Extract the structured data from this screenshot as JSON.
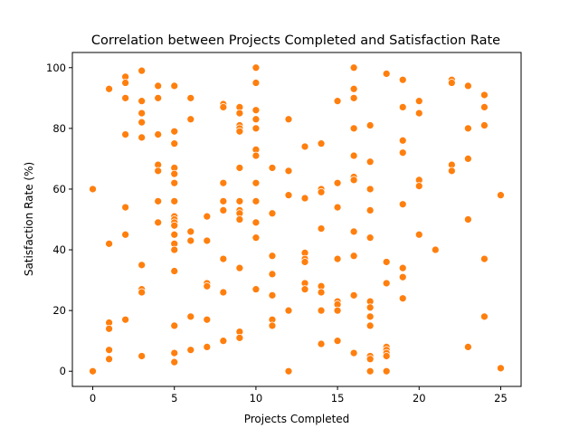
{
  "chart_data": {
    "type": "scatter",
    "title": "Correlation between Projects Completed and Satisfaction Rate",
    "xlabel": "Projects Completed",
    "ylabel": "Satisfaction Rate (%)",
    "xlim": [
      -1.25,
      26.25
    ],
    "ylim": [
      -5,
      105
    ],
    "xticks": [
      0,
      5,
      10,
      15,
      20,
      25
    ],
    "yticks": [
      0,
      20,
      40,
      60,
      80,
      100
    ],
    "xtick_labels": [
      "0",
      "5",
      "10",
      "15",
      "20",
      "25"
    ],
    "ytick_labels": [
      "0",
      "20",
      "40",
      "60",
      "80",
      "100"
    ],
    "grid": false,
    "marker_color": "#ff7f0e",
    "points": [
      [
        0,
        60
      ],
      [
        0,
        0
      ],
      [
        1,
        93
      ],
      [
        1,
        42
      ],
      [
        1,
        16
      ],
      [
        1,
        14
      ],
      [
        1,
        7
      ],
      [
        1,
        4
      ],
      [
        2,
        97
      ],
      [
        2,
        95
      ],
      [
        2,
        90
      ],
      [
        2,
        78
      ],
      [
        2,
        54
      ],
      [
        2,
        45
      ],
      [
        2,
        17
      ],
      [
        3,
        99
      ],
      [
        3,
        89
      ],
      [
        3,
        85
      ],
      [
        3,
        82
      ],
      [
        3,
        77
      ],
      [
        3,
        35
      ],
      [
        3,
        27
      ],
      [
        3,
        26
      ],
      [
        3,
        5
      ],
      [
        4,
        94
      ],
      [
        4,
        90
      ],
      [
        4,
        78
      ],
      [
        4,
        68
      ],
      [
        4,
        66
      ],
      [
        4,
        56
      ],
      [
        4,
        49
      ],
      [
        5,
        94
      ],
      [
        5,
        79
      ],
      [
        5,
        75
      ],
      [
        5,
        67
      ],
      [
        5,
        65
      ],
      [
        5,
        62
      ],
      [
        5,
        56
      ],
      [
        5,
        51
      ],
      [
        5,
        50
      ],
      [
        5,
        49
      ],
      [
        5,
        48
      ],
      [
        5,
        45
      ],
      [
        5,
        42
      ],
      [
        5,
        40
      ],
      [
        5,
        33
      ],
      [
        5,
        15
      ],
      [
        5,
        6
      ],
      [
        5,
        3
      ],
      [
        6,
        90
      ],
      [
        6,
        83
      ],
      [
        6,
        46
      ],
      [
        6,
        43
      ],
      [
        6,
        18
      ],
      [
        6,
        7
      ],
      [
        7,
        51
      ],
      [
        7,
        43
      ],
      [
        7,
        29
      ],
      [
        7,
        28
      ],
      [
        7,
        17
      ],
      [
        7,
        8
      ],
      [
        8,
        88
      ],
      [
        8,
        87
      ],
      [
        8,
        62
      ],
      [
        8,
        56
      ],
      [
        8,
        53
      ],
      [
        8,
        37
      ],
      [
        8,
        26
      ],
      [
        8,
        10
      ],
      [
        9,
        87
      ],
      [
        9,
        85
      ],
      [
        9,
        81
      ],
      [
        9,
        80
      ],
      [
        9,
        79
      ],
      [
        9,
        67
      ],
      [
        9,
        56
      ],
      [
        9,
        53
      ],
      [
        9,
        52
      ],
      [
        9,
        50
      ],
      [
        9,
        34
      ],
      [
        9,
        13
      ],
      [
        9,
        11
      ],
      [
        10,
        100
      ],
      [
        10,
        95
      ],
      [
        10,
        86
      ],
      [
        10,
        83
      ],
      [
        10,
        80
      ],
      [
        10,
        73
      ],
      [
        10,
        71
      ],
      [
        10,
        62
      ],
      [
        10,
        56
      ],
      [
        10,
        49
      ],
      [
        10,
        44
      ],
      [
        10,
        27
      ],
      [
        11,
        67
      ],
      [
        11,
        52
      ],
      [
        11,
        38
      ],
      [
        11,
        32
      ],
      [
        11,
        25
      ],
      [
        11,
        17
      ],
      [
        11,
        15
      ],
      [
        12,
        83
      ],
      [
        12,
        66
      ],
      [
        12,
        58
      ],
      [
        12,
        20
      ],
      [
        12,
        0
      ],
      [
        13,
        74
      ],
      [
        13,
        57
      ],
      [
        13,
        39
      ],
      [
        13,
        37
      ],
      [
        13,
        36
      ],
      [
        13,
        29
      ],
      [
        13,
        27
      ],
      [
        14,
        75
      ],
      [
        14,
        60
      ],
      [
        14,
        59
      ],
      [
        14,
        47
      ],
      [
        14,
        28
      ],
      [
        14,
        26
      ],
      [
        14,
        20
      ],
      [
        14,
        9
      ],
      [
        15,
        89
      ],
      [
        15,
        62
      ],
      [
        15,
        54
      ],
      [
        15,
        37
      ],
      [
        15,
        23
      ],
      [
        15,
        22
      ],
      [
        15,
        20
      ],
      [
        15,
        10
      ],
      [
        16,
        100
      ],
      [
        16,
        93
      ],
      [
        16,
        90
      ],
      [
        16,
        80
      ],
      [
        16,
        71
      ],
      [
        16,
        64
      ],
      [
        16,
        63
      ],
      [
        16,
        46
      ],
      [
        16,
        38
      ],
      [
        16,
        25
      ],
      [
        16,
        6
      ],
      [
        17,
        81
      ],
      [
        17,
        69
      ],
      [
        17,
        60
      ],
      [
        17,
        53
      ],
      [
        17,
        44
      ],
      [
        17,
        23
      ],
      [
        17,
        21
      ],
      [
        17,
        18
      ],
      [
        17,
        15
      ],
      [
        17,
        5
      ],
      [
        17,
        4
      ],
      [
        17,
        0
      ],
      [
        18,
        98
      ],
      [
        18,
        36
      ],
      [
        18,
        29
      ],
      [
        18,
        8
      ],
      [
        18,
        7
      ],
      [
        18,
        6
      ],
      [
        18,
        5
      ],
      [
        18,
        0
      ],
      [
        19,
        96
      ],
      [
        19,
        87
      ],
      [
        19,
        76
      ],
      [
        19,
        72
      ],
      [
        19,
        55
      ],
      [
        19,
        34
      ],
      [
        19,
        31
      ],
      [
        19,
        24
      ],
      [
        20,
        89
      ],
      [
        20,
        85
      ],
      [
        20,
        63
      ],
      [
        20,
        61
      ],
      [
        20,
        45
      ],
      [
        21,
        40
      ],
      [
        22,
        96
      ],
      [
        22,
        95
      ],
      [
        22,
        68
      ],
      [
        22,
        66
      ],
      [
        23,
        94
      ],
      [
        23,
        80
      ],
      [
        23,
        70
      ],
      [
        23,
        50
      ],
      [
        23,
        8
      ],
      [
        24,
        91
      ],
      [
        24,
        87
      ],
      [
        24,
        81
      ],
      [
        24,
        37
      ],
      [
        24,
        18
      ],
      [
        25,
        58
      ],
      [
        25,
        1
      ]
    ]
  }
}
